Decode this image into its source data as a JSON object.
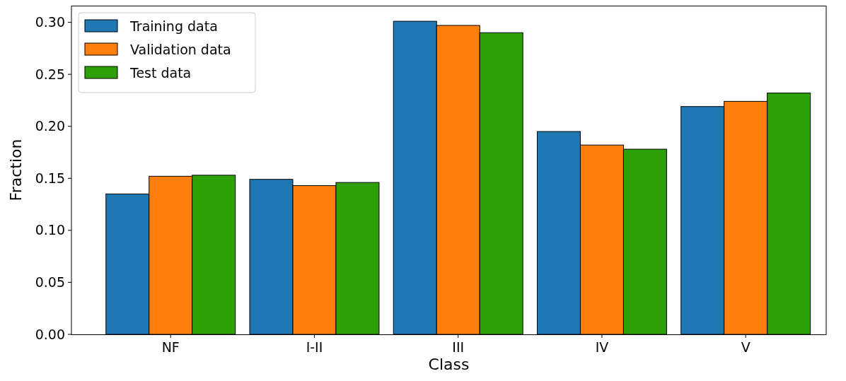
{
  "chart_data": {
    "type": "bar",
    "xlabel": "Class",
    "ylabel": "Fraction",
    "categories": [
      "NF",
      "I-II",
      "III",
      "IV",
      "V"
    ],
    "series": [
      {
        "name": "Training data",
        "color": "#1f77b4",
        "values": [
          0.135,
          0.149,
          0.301,
          0.195,
          0.219
        ]
      },
      {
        "name": "Validation data",
        "color": "#ff7f0e",
        "values": [
          0.152,
          0.143,
          0.297,
          0.182,
          0.224
        ]
      },
      {
        "name": "Test data",
        "color": "#2ca006",
        "values": [
          0.153,
          0.146,
          0.29,
          0.178,
          0.232
        ]
      }
    ],
    "ylim": [
      0,
      0.316
    ],
    "yticks": [
      {
        "value": 0,
        "label": "0.00"
      },
      {
        "value": 0.05,
        "label": "0.05"
      },
      {
        "value": 0.1,
        "label": "0.10"
      },
      {
        "value": 0.15,
        "label": "0.15"
      },
      {
        "value": 0.2,
        "label": "0.20"
      },
      {
        "value": 0.25,
        "label": "0.25"
      },
      {
        "value": 0.3,
        "label": "0.30"
      }
    ],
    "grid": false,
    "legend": "top left"
  }
}
